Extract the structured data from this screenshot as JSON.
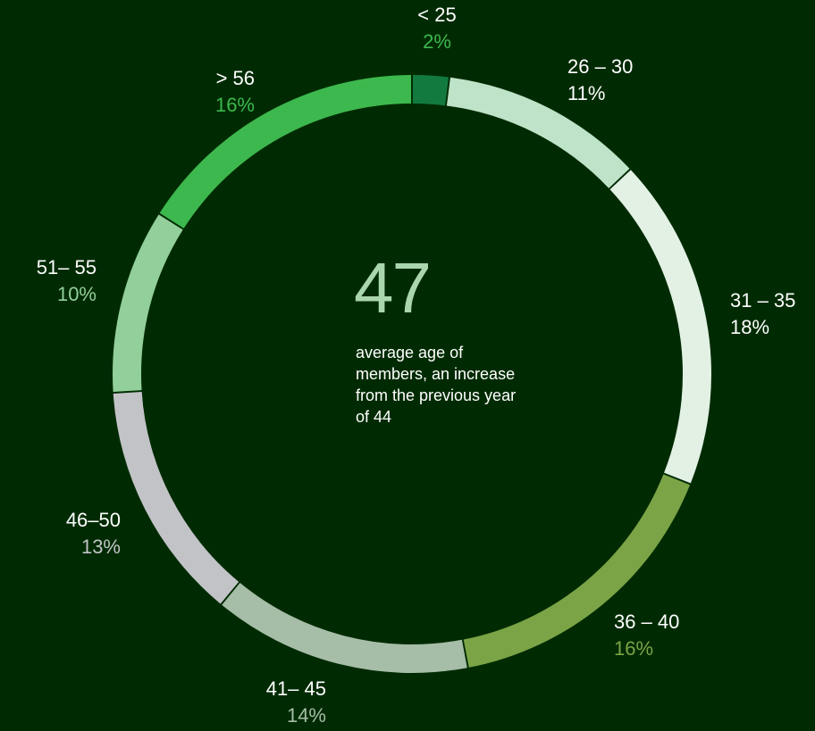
{
  "chart_data": {
    "type": "pie",
    "categories": [
      "< 25",
      "26 – 30",
      "31 – 35",
      "36 – 40",
      "41– 45",
      "46–50",
      "51– 55",
      "> 56"
    ],
    "values": [
      2,
      11,
      18,
      16,
      14,
      13,
      10,
      16
    ],
    "value_labels": [
      "2%",
      "11%",
      "18%",
      "16%",
      "14%",
      "13%",
      "10%",
      "16%"
    ],
    "colors": [
      "#127a3e",
      "#bfe3c8",
      "#e3f1e5",
      "#7ba446",
      "#a6bda7",
      "#c2c3c7",
      "#92cf9a",
      "#3db84e"
    ],
    "value_label_colors": [
      "#3db84e",
      "#ffffff",
      "#ffffff",
      "#7ba446",
      "#a6bda7",
      "#c2c3c7",
      "#92cf9a",
      "#3db84e"
    ]
  },
  "center": {
    "value": "47",
    "caption": "average age of members, an increase from the previous year of 44"
  }
}
